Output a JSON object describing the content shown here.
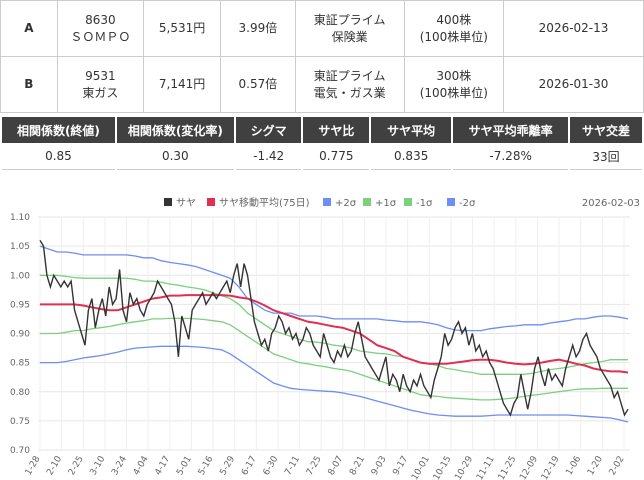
{
  "pairs": [
    {
      "label": "A",
      "code": "8630",
      "name": "ＳＯＭＰＯ",
      "price": "5,531円",
      "ratio": "3.99倍",
      "market": "東証プライム",
      "sector": "保険業",
      "shares": "400株",
      "unit": "(100株単位)",
      "date": "2026-02-13"
    },
    {
      "label": "B",
      "code": "9531",
      "name": "東ガス",
      "price": "7,141円",
      "ratio": "0.57倍",
      "market": "東証プライム",
      "sector": "電気・ガス業",
      "shares": "300株",
      "unit": "(100株単位)",
      "date": "2026-01-30"
    }
  ],
  "stats": {
    "headers": [
      "相関係数(終値)",
      "相関係数(変化率)",
      "シグマ",
      "サヤ比",
      "サヤ平均",
      "サヤ平均乖離率",
      "サヤ交差"
    ],
    "values": [
      "0.85",
      "0.30",
      "-1.42",
      "0.775",
      "0.835",
      "-7.28%",
      "33回"
    ]
  },
  "chart_data": {
    "type": "line",
    "date_label": "2026-02-03",
    "legend": [
      "サヤ",
      "サヤ移動平均(75日)",
      "+2σ",
      "+1σ",
      "-1σ",
      "-2σ"
    ],
    "colors": {
      "saya": "#333333",
      "ma": "#e03050",
      "p2": "#6c8ef5",
      "p1": "#7ed07e",
      "m1": "#7ed07e",
      "m2": "#6c8ef5"
    },
    "ylim": [
      0.7,
      1.1
    ],
    "yticks": [
      "1.10",
      "1.05",
      "1.00",
      "0.95",
      "0.90",
      "0.85",
      "0.80",
      "0.75",
      "0.70"
    ],
    "xticks": [
      "1-28",
      "2-10",
      "2-25",
      "3-10",
      "3-24",
      "4-04",
      "4-17",
      "5-01",
      "5-16",
      "5-29",
      "6-17",
      "6-30",
      "7-11",
      "7-25",
      "8-07",
      "8-21",
      "9-03",
      "9-17",
      "10-01",
      "10-15",
      "10-29",
      "11-11",
      "11-25",
      "12-09",
      "12-19",
      "1-06",
      "1-20",
      "2-02"
    ],
    "series": {
      "saya": [
        1.06,
        1.05,
        1.0,
        0.98,
        1.0,
        0.99,
        0.98,
        0.99,
        0.98,
        0.99,
        0.94,
        0.92,
        0.9,
        0.88,
        0.94,
        0.96,
        0.91,
        0.94,
        0.96,
        0.93,
        0.98,
        0.95,
        0.96,
        1.01,
        0.94,
        0.92,
        0.97,
        0.95,
        0.96,
        0.94,
        0.93,
        0.95,
        0.96,
        0.97,
        0.99,
        0.98,
        0.97,
        0.96,
        0.95,
        0.92,
        0.86,
        0.93,
        0.91,
        0.89,
        0.94,
        0.95,
        0.96,
        0.97,
        0.95,
        0.96,
        0.97,
        0.96,
        0.97,
        0.98,
        0.99,
        0.97,
        1.0,
        1.02,
        0.98,
        1.02,
        1.0,
        0.96,
        0.92,
        0.9,
        0.88,
        0.89,
        0.87,
        0.9,
        0.91,
        0.93,
        0.92,
        0.9,
        0.91,
        0.89,
        0.9,
        0.88,
        0.89,
        0.91,
        0.9,
        0.88,
        0.87,
        0.86,
        0.9,
        0.88,
        0.86,
        0.85,
        0.87,
        0.86,
        0.88,
        0.86,
        0.87,
        0.9,
        0.92,
        0.89,
        0.86,
        0.85,
        0.84,
        0.83,
        0.82,
        0.84,
        0.86,
        0.81,
        0.83,
        0.82,
        0.8,
        0.83,
        0.81,
        0.8,
        0.82,
        0.81,
        0.83,
        0.81,
        0.8,
        0.79,
        0.82,
        0.84,
        0.86,
        0.9,
        0.88,
        0.89,
        0.91,
        0.92,
        0.9,
        0.91,
        0.88,
        0.9,
        0.87,
        0.88,
        0.86,
        0.87,
        0.85,
        0.84,
        0.82,
        0.8,
        0.78,
        0.77,
        0.76,
        0.78,
        0.79,
        0.83,
        0.8,
        0.77,
        0.8,
        0.84,
        0.86,
        0.83,
        0.81,
        0.84,
        0.82,
        0.83,
        0.82,
        0.81,
        0.84,
        0.86,
        0.88,
        0.86,
        0.87,
        0.89,
        0.9,
        0.88,
        0.87,
        0.86,
        0.84,
        0.83,
        0.82,
        0.81,
        0.79,
        0.8,
        0.78,
        0.76,
        0.77
      ],
      "ma": [
        0.95,
        0.95,
        0.95,
        0.95,
        0.95,
        0.948,
        0.945,
        0.942,
        0.94,
        0.94,
        0.945,
        0.95,
        0.955,
        0.96,
        0.962,
        0.965,
        0.965,
        0.966,
        0.966,
        0.966,
        0.966,
        0.966,
        0.965,
        0.962,
        0.96,
        0.955,
        0.948,
        0.94,
        0.935,
        0.93,
        0.925,
        0.92,
        0.918,
        0.915,
        0.912,
        0.91,
        0.905,
        0.9,
        0.89,
        0.88,
        0.875,
        0.87,
        0.86,
        0.855,
        0.85,
        0.848,
        0.848,
        0.848,
        0.85,
        0.852,
        0.854,
        0.855,
        0.855,
        0.853,
        0.85,
        0.848,
        0.847,
        0.848,
        0.85,
        0.853,
        0.855,
        0.852,
        0.848,
        0.845,
        0.84,
        0.837,
        0.835,
        0.835,
        0.833
      ],
      "p2": [
        1.05,
        1.045,
        1.04,
        1.04,
        1.038,
        1.035,
        1.035,
        1.035,
        1.035,
        1.035,
        1.035,
        1.033,
        1.03,
        1.03,
        1.025,
        1.022,
        1.02,
        1.018,
        1.015,
        1.01,
        1.005,
        1.0,
        0.995,
        0.98,
        0.96,
        0.95,
        0.94,
        0.935,
        0.935,
        0.935,
        0.93,
        0.93,
        0.93,
        0.928,
        0.925,
        0.925,
        0.925,
        0.925,
        0.925,
        0.925,
        0.923,
        0.922,
        0.92,
        0.92,
        0.92,
        0.918,
        0.915,
        0.91,
        0.906,
        0.905,
        0.905,
        0.905,
        0.908,
        0.91,
        0.912,
        0.913,
        0.915,
        0.915,
        0.915,
        0.918,
        0.92,
        0.922,
        0.925,
        0.925,
        0.928,
        0.93,
        0.93,
        0.928,
        0.925
      ],
      "p1": [
        1.0,
        1.0,
        1.0,
        0.998,
        0.996,
        0.995,
        0.995,
        0.995,
        0.995,
        0.995,
        0.995,
        0.993,
        0.99,
        0.99,
        0.988,
        0.985,
        0.983,
        0.98,
        0.978,
        0.975,
        0.97,
        0.965,
        0.96,
        0.95,
        0.935,
        0.925,
        0.915,
        0.905,
        0.9,
        0.895,
        0.89,
        0.886,
        0.885,
        0.883,
        0.88,
        0.878,
        0.875,
        0.87,
        0.868,
        0.866,
        0.865,
        0.862,
        0.86,
        0.855,
        0.85,
        0.848,
        0.845,
        0.84,
        0.838,
        0.835,
        0.833,
        0.83,
        0.83,
        0.83,
        0.83,
        0.83,
        0.83,
        0.832,
        0.835,
        0.838,
        0.84,
        0.842,
        0.845,
        0.848,
        0.85,
        0.852,
        0.855,
        0.855,
        0.855
      ],
      "m1": [
        0.9,
        0.9,
        0.9,
        0.902,
        0.905,
        0.905,
        0.908,
        0.91,
        0.912,
        0.915,
        0.918,
        0.92,
        0.922,
        0.925,
        0.925,
        0.926,
        0.926,
        0.926,
        0.925,
        0.924,
        0.922,
        0.92,
        0.915,
        0.905,
        0.895,
        0.885,
        0.875,
        0.865,
        0.86,
        0.855,
        0.85,
        0.848,
        0.845,
        0.843,
        0.84,
        0.838,
        0.835,
        0.83,
        0.825,
        0.82,
        0.815,
        0.81,
        0.805,
        0.8,
        0.795,
        0.793,
        0.792,
        0.79,
        0.789,
        0.788,
        0.787,
        0.786,
        0.786,
        0.787,
        0.788,
        0.79,
        0.792,
        0.794,
        0.796,
        0.798,
        0.8,
        0.802,
        0.804,
        0.805,
        0.805,
        0.806,
        0.806,
        0.806,
        0.806
      ],
      "m2": [
        0.85,
        0.85,
        0.85,
        0.852,
        0.855,
        0.858,
        0.86,
        0.862,
        0.865,
        0.868,
        0.872,
        0.875,
        0.876,
        0.877,
        0.878,
        0.878,
        0.878,
        0.878,
        0.877,
        0.876,
        0.874,
        0.872,
        0.865,
        0.855,
        0.845,
        0.835,
        0.825,
        0.815,
        0.81,
        0.806,
        0.804,
        0.803,
        0.802,
        0.801,
        0.8,
        0.798,
        0.795,
        0.792,
        0.788,
        0.784,
        0.78,
        0.776,
        0.772,
        0.768,
        0.765,
        0.762,
        0.76,
        0.759,
        0.758,
        0.758,
        0.758,
        0.758,
        0.759,
        0.76,
        0.76,
        0.76,
        0.76,
        0.76,
        0.76,
        0.76,
        0.76,
        0.76,
        0.759,
        0.758,
        0.757,
        0.756,
        0.755,
        0.752,
        0.748
      ]
    }
  }
}
